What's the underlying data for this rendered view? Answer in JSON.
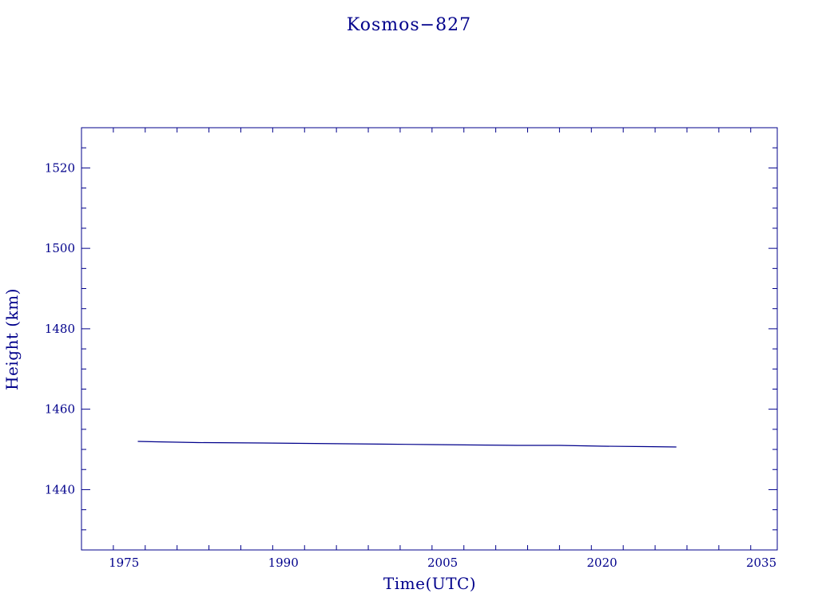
{
  "chart_data": {
    "type": "line",
    "title": "Kosmos−827",
    "xlabel": "Time(UTC)",
    "ylabel": "Height (km)",
    "xlim": [
      1971,
      2036.5
    ],
    "ylim": [
      1425,
      1530
    ],
    "xticks_major": [
      1975,
      1990,
      2005,
      2020,
      2035
    ],
    "xtick_minor_step": 3,
    "yticks_major": [
      1440,
      1460,
      1480,
      1500,
      1520
    ],
    "ytick_minor_step": 5,
    "grid": false,
    "color": "#00008b",
    "series": [
      {
        "x": [
          1976.3,
          1978.0,
          1982.0,
          1988.0,
          1992.0,
          1996.0,
          2000.0,
          2004.0,
          2008.0,
          2012.0,
          2016.0,
          2020.0,
          2024.0,
          2027.0
        ],
        "y": [
          1452.0,
          1451.9,
          1451.7,
          1451.6,
          1451.5,
          1451.4,
          1451.3,
          1451.2,
          1451.1,
          1451.0,
          1451.0,
          1450.8,
          1450.7,
          1450.6
        ]
      }
    ]
  }
}
